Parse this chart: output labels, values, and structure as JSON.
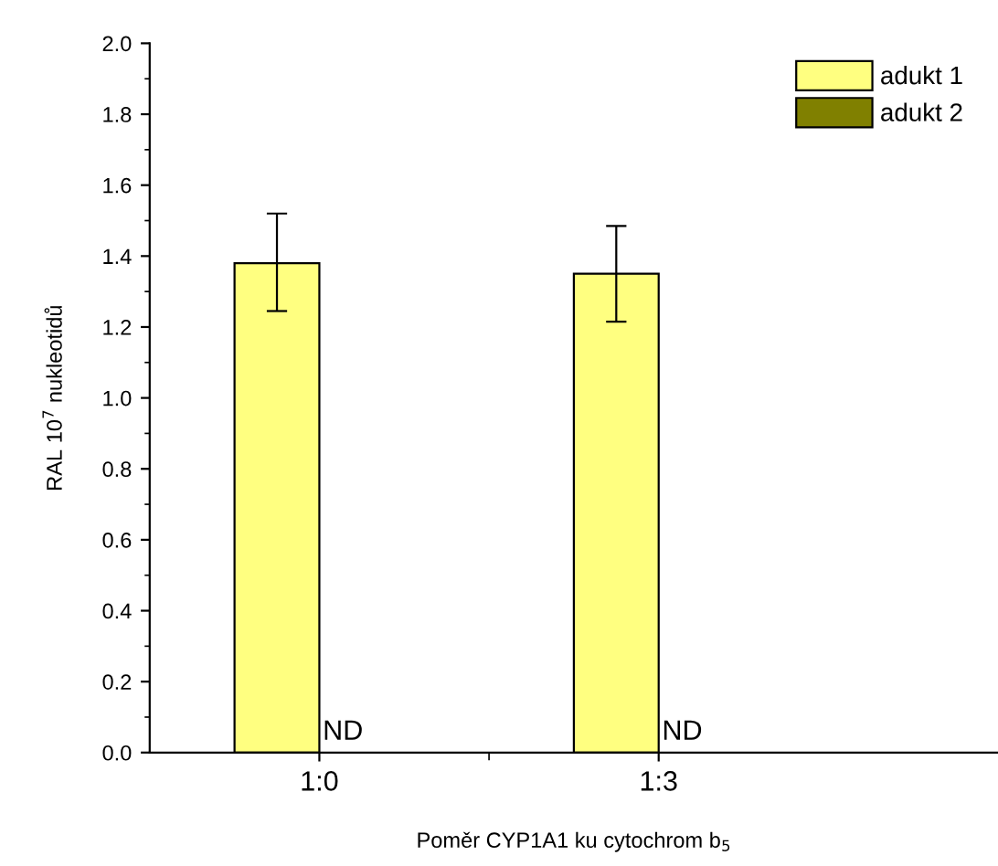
{
  "chart_data": {
    "type": "bar",
    "xlabel": "Poměr CYP1A1 ku cytochrom b$_{5}$",
    "ylabel": "RAL 10$^{7}$ nukleotidů",
    "categories": [
      "1:0",
      "1:3"
    ],
    "series": [
      {
        "name": "adukt 1",
        "color": "#ffff80",
        "values": [
          1.38,
          1.35
        ],
        "errors": [
          [
            1.245,
            1.52
          ],
          [
            1.215,
            1.485
          ]
        ]
      },
      {
        "name": "adukt 2",
        "color": "#808000",
        "values": [
          null,
          null
        ],
        "value_labels": [
          "ND",
          "ND"
        ]
      }
    ],
    "ylim": [
      0,
      2.0
    ],
    "yticks": [
      {
        "value": 0,
        "label": "0.0"
      },
      {
        "value": 0.2,
        "label": "0.2"
      },
      {
        "value": 0.4,
        "label": "0.4"
      },
      {
        "value": 0.6,
        "label": "0.6"
      },
      {
        "value": 0.8,
        "label": "0.8"
      },
      {
        "value": 1.0,
        "label": "1.0"
      },
      {
        "value": 1.2,
        "label": "1.2"
      },
      {
        "value": 1.4,
        "label": "1.4"
      },
      {
        "value": 1.6,
        "label": "1.6"
      },
      {
        "value": 1.8,
        "label": "1.8"
      },
      {
        "value": 2.0,
        "label": "2.0"
      }
    ],
    "legend": "top right",
    "grid": false
  }
}
